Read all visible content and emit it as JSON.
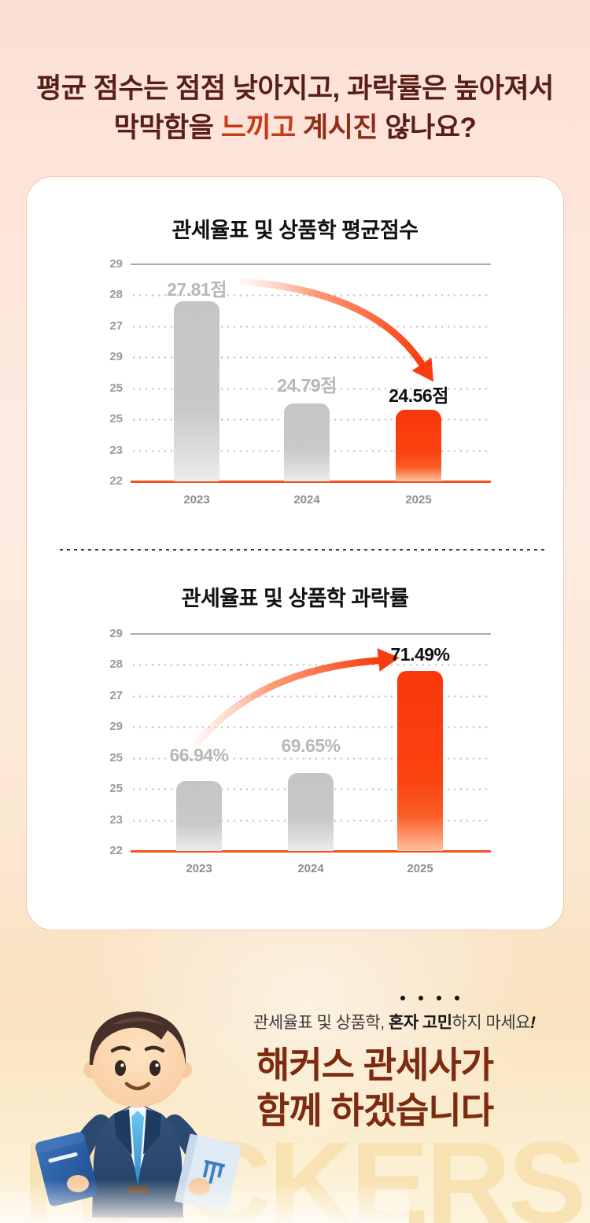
{
  "headline": {
    "line1": "평균 점수는 점점 낮아지고, 과락률은 높아져서",
    "line2_pre": "막막함을 ",
    "line2_red": "느끼고",
    "line2_mid": " 계시진",
    "line2_post": " 않나요?"
  },
  "chart_data": [
    {
      "type": "bar",
      "title": "관세율표 및 상품학 평균점수",
      "categories": [
        "2023",
        "2024",
        "2025"
      ],
      "values": [
        27.81,
        24.79,
        24.56
      ],
      "value_labels": [
        "27.81점",
        "24.79점",
        "24.56점"
      ],
      "unit": "점",
      "y_tick_labels": [
        "29",
        "28",
        "27",
        "29",
        "25",
        "25",
        "23",
        "22"
      ],
      "ylim": [
        22,
        29
      ],
      "grid": "dotted-horizontal",
      "bar_color": "#c6c6c6",
      "highlight_index": 2,
      "highlight_color": "#f93c0e",
      "trend_arrow": "down",
      "legend": "none"
    },
    {
      "type": "bar",
      "title": "관세율표 및 상품학 과락률",
      "categories": [
        "2023",
        "2024",
        "2025"
      ],
      "values": [
        66.94,
        69.65,
        71.49
      ],
      "value_labels": [
        "66.94%",
        "69.65%",
        "71.49%"
      ],
      "unit": "%",
      "y_tick_labels": [
        "29",
        "28",
        "27",
        "29",
        "25",
        "25",
        "23",
        "22"
      ],
      "ylim": [
        22,
        29
      ],
      "grid": "dotted-horizontal",
      "bar_color": "#c6c6c6",
      "highlight_index": 2,
      "highlight_color": "#f93c0e",
      "trend_arrow": "up",
      "legend": "none"
    }
  ],
  "footer": {
    "dots_count": 4,
    "tagline_pre": "관세율표 및 상품학, ",
    "tagline_bold": "혼자 고민",
    "tagline_post": "하지 마세요",
    "tagline_exclaim": "!",
    "big_line1": "해커스 관세사가",
    "big_line2": "함께 하겠습니다",
    "watermark": "HACKERS"
  },
  "colors": {
    "accent_red": "#f93c0e",
    "axis_red": "#f4511e",
    "bar_gray": "#c6c6c6",
    "headline_maroon": "#571f16",
    "footer_brown": "#7c2b10",
    "bg_top_pink": "#fcdfd6",
    "bg_bottom_cream": "#fdf4dc",
    "watermark_cream": "#f8dfab"
  }
}
